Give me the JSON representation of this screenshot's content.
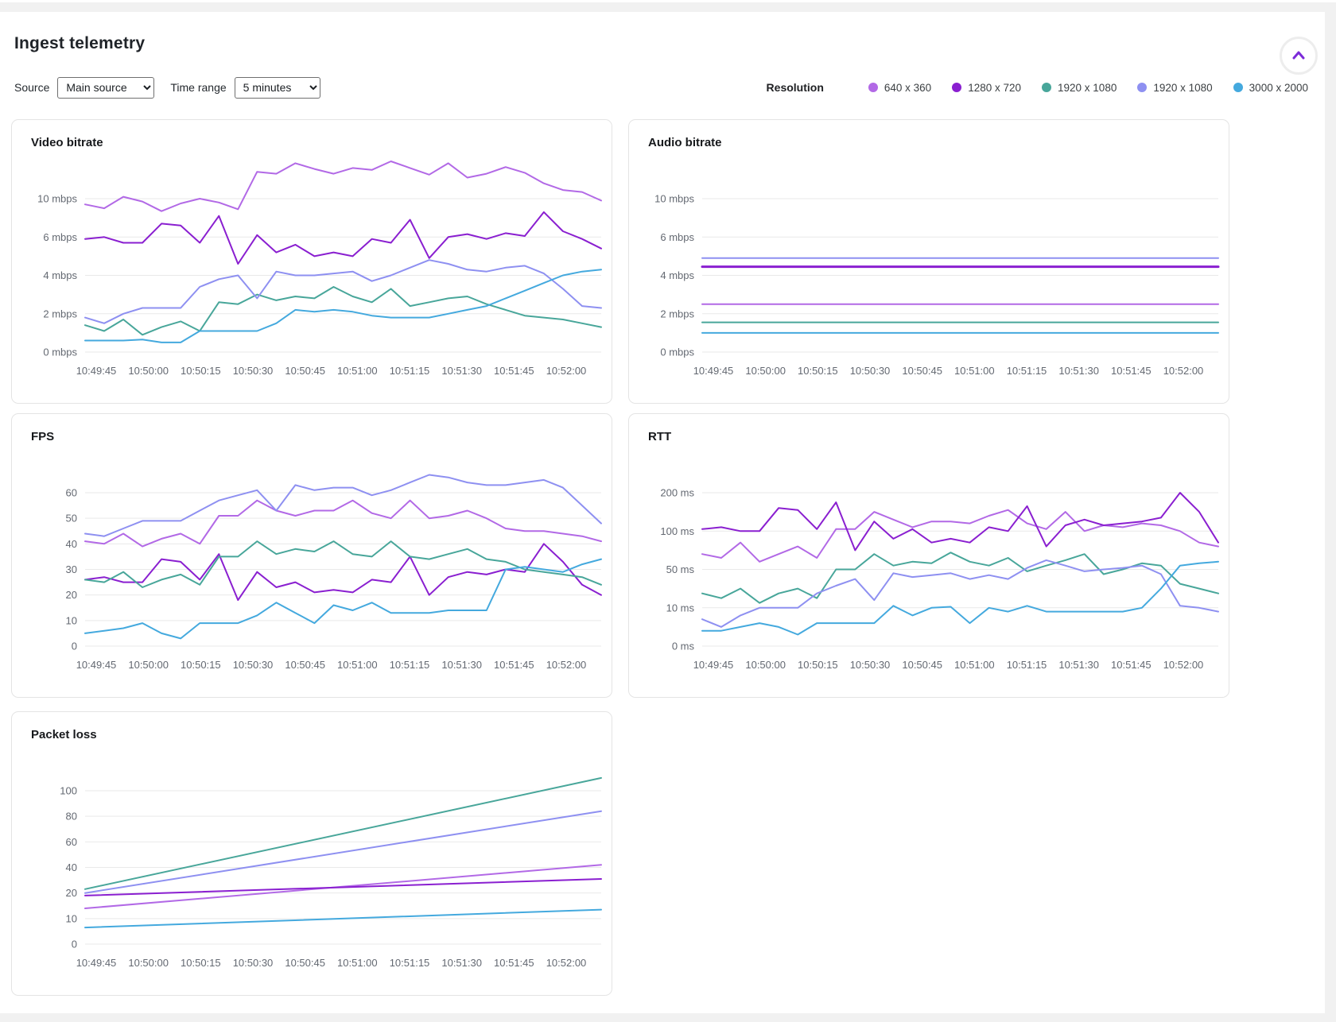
{
  "page": {
    "title": "Ingest telemetry"
  },
  "controls": {
    "source_label": "Source",
    "source_value": "Main source",
    "time_range_label": "Time range",
    "time_range_value": "5 minutes"
  },
  "legend": {
    "label": "Resolution",
    "items": [
      {
        "name": "640 x 360",
        "color": "#b269e6"
      },
      {
        "name": "1280 x 720",
        "color": "#8a1fd0"
      },
      {
        "name": "1920 x 1080",
        "color": "#48a69a"
      },
      {
        "name": "1920 x 1080",
        "color": "#8e90f1"
      },
      {
        "name": "3000 x 2000",
        "color": "#44a9de"
      }
    ]
  },
  "icons": {
    "collapse": "chevron-up",
    "collapse_color": "#7c2bd9"
  },
  "chart_data": [
    {
      "id": "video-bitrate",
      "type": "line",
      "title": "Video bitrate",
      "y_ticks": {
        "values": [
          0,
          2,
          4,
          6,
          10
        ],
        "labels": [
          "0 mbps",
          "2 mbps",
          "4 mbps",
          "6 mbps",
          "10 mbps"
        ]
      },
      "x_labels": [
        "10:49:45",
        "10:50:00",
        "10:50:15",
        "10:50:30",
        "10:50:45",
        "10:51:00",
        "10:51:15",
        "10:51:30",
        "10:51:45",
        "10:52:00"
      ],
      "grid": true,
      "legend_position": "top-right-shared",
      "series": [
        {
          "name": "640 x 360",
          "color": "#b269e6",
          "values": [
            9.4,
            9.0,
            10.2,
            9.7,
            8.7,
            9.5,
            10.0,
            9.6,
            8.9,
            12.8,
            12.6,
            13.7,
            13.1,
            12.6,
            13.2,
            13.0,
            13.9,
            13.2,
            12.5,
            13.7,
            12.2,
            12.6,
            13.3,
            12.7,
            11.6,
            10.9,
            10.7,
            9.8
          ]
        },
        {
          "name": "1280 x 720",
          "color": "#8a1fd0",
          "values": [
            5.9,
            6.0,
            5.7,
            5.7,
            7.4,
            7.2,
            5.7,
            8.2,
            4.6,
            6.2,
            5.2,
            5.6,
            5.0,
            5.2,
            5.0,
            5.9,
            5.7,
            7.8,
            4.9,
            6.0,
            6.3,
            5.9,
            6.4,
            6.1,
            8.6,
            6.6,
            5.9,
            5.4
          ]
        },
        {
          "name": "1920 x 1080",
          "color": "#48a69a",
          "values": [
            1.4,
            1.1,
            1.7,
            0.9,
            1.3,
            1.6,
            1.1,
            2.6,
            2.5,
            3.0,
            2.7,
            2.9,
            2.8,
            3.4,
            2.9,
            2.6,
            3.3,
            2.4,
            2.6,
            2.8,
            2.9,
            2.5,
            2.2,
            1.9,
            1.8,
            1.7,
            1.5,
            1.3
          ]
        },
        {
          "name": "1920 x 1080",
          "color": "#8e90f1",
          "values": [
            1.8,
            1.5,
            2.0,
            2.3,
            2.3,
            2.3,
            3.4,
            3.8,
            4.0,
            2.8,
            4.2,
            4.0,
            4.0,
            4.1,
            4.2,
            3.7,
            4.0,
            4.4,
            4.8,
            4.6,
            4.3,
            4.2,
            4.4,
            4.5,
            4.1,
            3.3,
            2.4,
            2.3
          ]
        },
        {
          "name": "3000 x 2000",
          "color": "#44a9de",
          "values": [
            0.6,
            0.6,
            0.6,
            0.65,
            0.5,
            0.5,
            1.1,
            1.1,
            1.1,
            1.1,
            1.5,
            2.2,
            2.1,
            2.2,
            2.1,
            1.9,
            1.8,
            1.8,
            1.8,
            2.0,
            2.2,
            2.4,
            2.8,
            3.2,
            3.6,
            4.0,
            4.2,
            4.3
          ]
        }
      ]
    },
    {
      "id": "audio-bitrate",
      "type": "line",
      "title": "Audio bitrate",
      "y_ticks": {
        "values": [
          0,
          2,
          4,
          6,
          10
        ],
        "labels": [
          "0 mbps",
          "2 mbps",
          "4 mbps",
          "6 mbps",
          "10 mbps"
        ]
      },
      "x_labels": [
        "10:49:45",
        "10:50:00",
        "10:50:15",
        "10:50:30",
        "10:50:45",
        "10:51:00",
        "10:51:15",
        "10:51:30",
        "10:51:45",
        "10:52:00"
      ],
      "grid": true,
      "series": [
        {
          "name": "640 x 360",
          "color": "#b269e6",
          "values": [
            2.5,
            2.5
          ]
        },
        {
          "name": "1280 x 720",
          "color": "#8a1fd0",
          "width": 3,
          "values": [
            4.45,
            4.45
          ]
        },
        {
          "name": "1920 x 1080",
          "color": "#48a69a",
          "values": [
            1.55,
            1.55
          ]
        },
        {
          "name": "1920 x 1080",
          "color": "#8e90f1",
          "values": [
            4.9,
            4.9
          ]
        },
        {
          "name": "3000 x 2000",
          "color": "#44a9de",
          "values": [
            1.0,
            1.0
          ]
        }
      ]
    },
    {
      "id": "fps",
      "type": "line",
      "title": "FPS",
      "y_ticks": {
        "values": [
          0,
          10,
          20,
          30,
          40,
          50,
          60
        ],
        "labels": [
          "0",
          "10",
          "20",
          "30",
          "40",
          "50",
          "60"
        ]
      },
      "x_labels": [
        "10:49:45",
        "10:50:00",
        "10:50:15",
        "10:50:30",
        "10:50:45",
        "10:51:00",
        "10:51:15",
        "10:51:30",
        "10:51:45",
        "10:52:00"
      ],
      "grid": true,
      "series": [
        {
          "name": "640 x 360",
          "color": "#b269e6",
          "values": [
            41,
            40,
            44,
            39,
            42,
            44,
            40,
            51,
            51,
            57,
            53,
            51,
            53,
            53,
            57,
            52,
            50,
            57,
            50,
            51,
            53,
            50,
            46,
            45,
            45,
            44,
            43,
            41
          ]
        },
        {
          "name": "1280 x 720",
          "color": "#8a1fd0",
          "values": [
            26,
            27,
            25,
            25,
            34,
            33,
            26,
            36,
            18,
            29,
            23,
            25,
            21,
            22,
            21,
            26,
            25,
            35,
            20,
            27,
            29,
            28,
            30,
            29,
            40,
            33,
            24,
            20
          ]
        },
        {
          "name": "1920 x 1080",
          "color": "#48a69a",
          "values": [
            26,
            25,
            29,
            23,
            26,
            28,
            24,
            35,
            35,
            41,
            36,
            38,
            37,
            41,
            36,
            35,
            41,
            35,
            34,
            36,
            38,
            34,
            33,
            30,
            29,
            28,
            27,
            24
          ]
        },
        {
          "name": "1920 x 1080",
          "color": "#8e90f1",
          "values": [
            44,
            43,
            46,
            49,
            49,
            49,
            53,
            57,
            59,
            61,
            53,
            63,
            61,
            62,
            62,
            59,
            61,
            64,
            67,
            66,
            64,
            63,
            63,
            64,
            65,
            62,
            55,
            48
          ]
        },
        {
          "name": "3000 x 2000",
          "color": "#44a9de",
          "values": [
            5,
            6,
            7,
            9,
            5,
            3,
            9,
            9,
            9,
            12,
            17,
            13,
            9,
            16,
            14,
            17,
            13,
            13,
            13,
            14,
            14,
            14,
            30,
            31,
            30,
            29,
            32,
            34
          ]
        }
      ]
    },
    {
      "id": "rtt",
      "type": "line",
      "title": "RTT",
      "y_ticks": {
        "values": [
          0,
          10,
          50,
          100,
          200
        ],
        "labels": [
          "0 ms",
          "10 ms",
          "50 ms",
          "100 ms",
          "200 ms"
        ]
      },
      "x_labels": [
        "10:49:45",
        "10:50:00",
        "10:50:15",
        "10:50:30",
        "10:50:45",
        "10:51:00",
        "10:51:15",
        "10:51:30",
        "10:51:45",
        "10:52:00"
      ],
      "grid": true,
      "series": [
        {
          "name": "640 x 360",
          "color": "#b269e6",
          "values": [
            70,
            65,
            85,
            60,
            70,
            80,
            65,
            105,
            105,
            150,
            130,
            110,
            125,
            125,
            120,
            140,
            155,
            120,
            105,
            150,
            100,
            115,
            110,
            120,
            115,
            100,
            85,
            80
          ]
        },
        {
          "name": "1280 x 720",
          "color": "#8a1fd0",
          "values": [
            105,
            110,
            100,
            100,
            160,
            155,
            105,
            175,
            75,
            125,
            90,
            105,
            85,
            90,
            85,
            110,
            100,
            165,
            80,
            115,
            130,
            115,
            120,
            125,
            135,
            200,
            150,
            85
          ]
        },
        {
          "name": "1920 x 1080",
          "color": "#48a69a",
          "values": [
            25,
            20,
            30,
            15,
            25,
            30,
            20,
            50,
            50,
            70,
            55,
            60,
            58,
            72,
            60,
            55,
            65,
            48,
            55,
            62,
            70,
            45,
            50,
            58,
            55,
            35,
            30,
            25
          ]
        },
        {
          "name": "1920 x 1080",
          "color": "#8e90f1",
          "values": [
            7,
            5,
            8,
            10,
            10,
            10,
            25,
            33,
            40,
            18,
            46,
            42,
            44,
            46,
            40,
            44,
            40,
            52,
            62,
            55,
            48,
            50,
            52,
            55,
            45,
            12,
            10,
            9
          ]
        },
        {
          "name": "3000 x 2000",
          "color": "#44a9de",
          "values": [
            4,
            4,
            5,
            6,
            5,
            3,
            6,
            6,
            6,
            6,
            12,
            8,
            10,
            11,
            6,
            10,
            9,
            12,
            9,
            9,
            9,
            9,
            9,
            10,
            30,
            55,
            58,
            60
          ]
        }
      ]
    },
    {
      "id": "packet-loss",
      "type": "line",
      "title": "Packet loss",
      "y_ticks": {
        "values": [
          0,
          10,
          20,
          40,
          60,
          80,
          100
        ],
        "labels": [
          "0",
          "10",
          "20",
          "40",
          "60",
          "80",
          "100"
        ]
      },
      "x_labels": [
        "10:49:45",
        "10:50:00",
        "10:50:15",
        "10:50:30",
        "10:50:45",
        "10:51:00",
        "10:51:15",
        "10:51:30",
        "10:51:45",
        "10:52:00"
      ],
      "grid": true,
      "series": [
        {
          "name": "640 x 360",
          "color": "#b269e6",
          "values": [
            14,
            42
          ]
        },
        {
          "name": "1280 x 720",
          "color": "#8a1fd0",
          "values": [
            19,
            31
          ]
        },
        {
          "name": "1920 x 1080",
          "color": "#48a69a",
          "values": [
            23,
            110
          ]
        },
        {
          "name": "1920 x 1080",
          "color": "#8e90f1",
          "values": [
            20,
            84
          ]
        },
        {
          "name": "3000 x 2000",
          "color": "#44a9de",
          "values": [
            6.5,
            13.5
          ]
        }
      ]
    }
  ]
}
